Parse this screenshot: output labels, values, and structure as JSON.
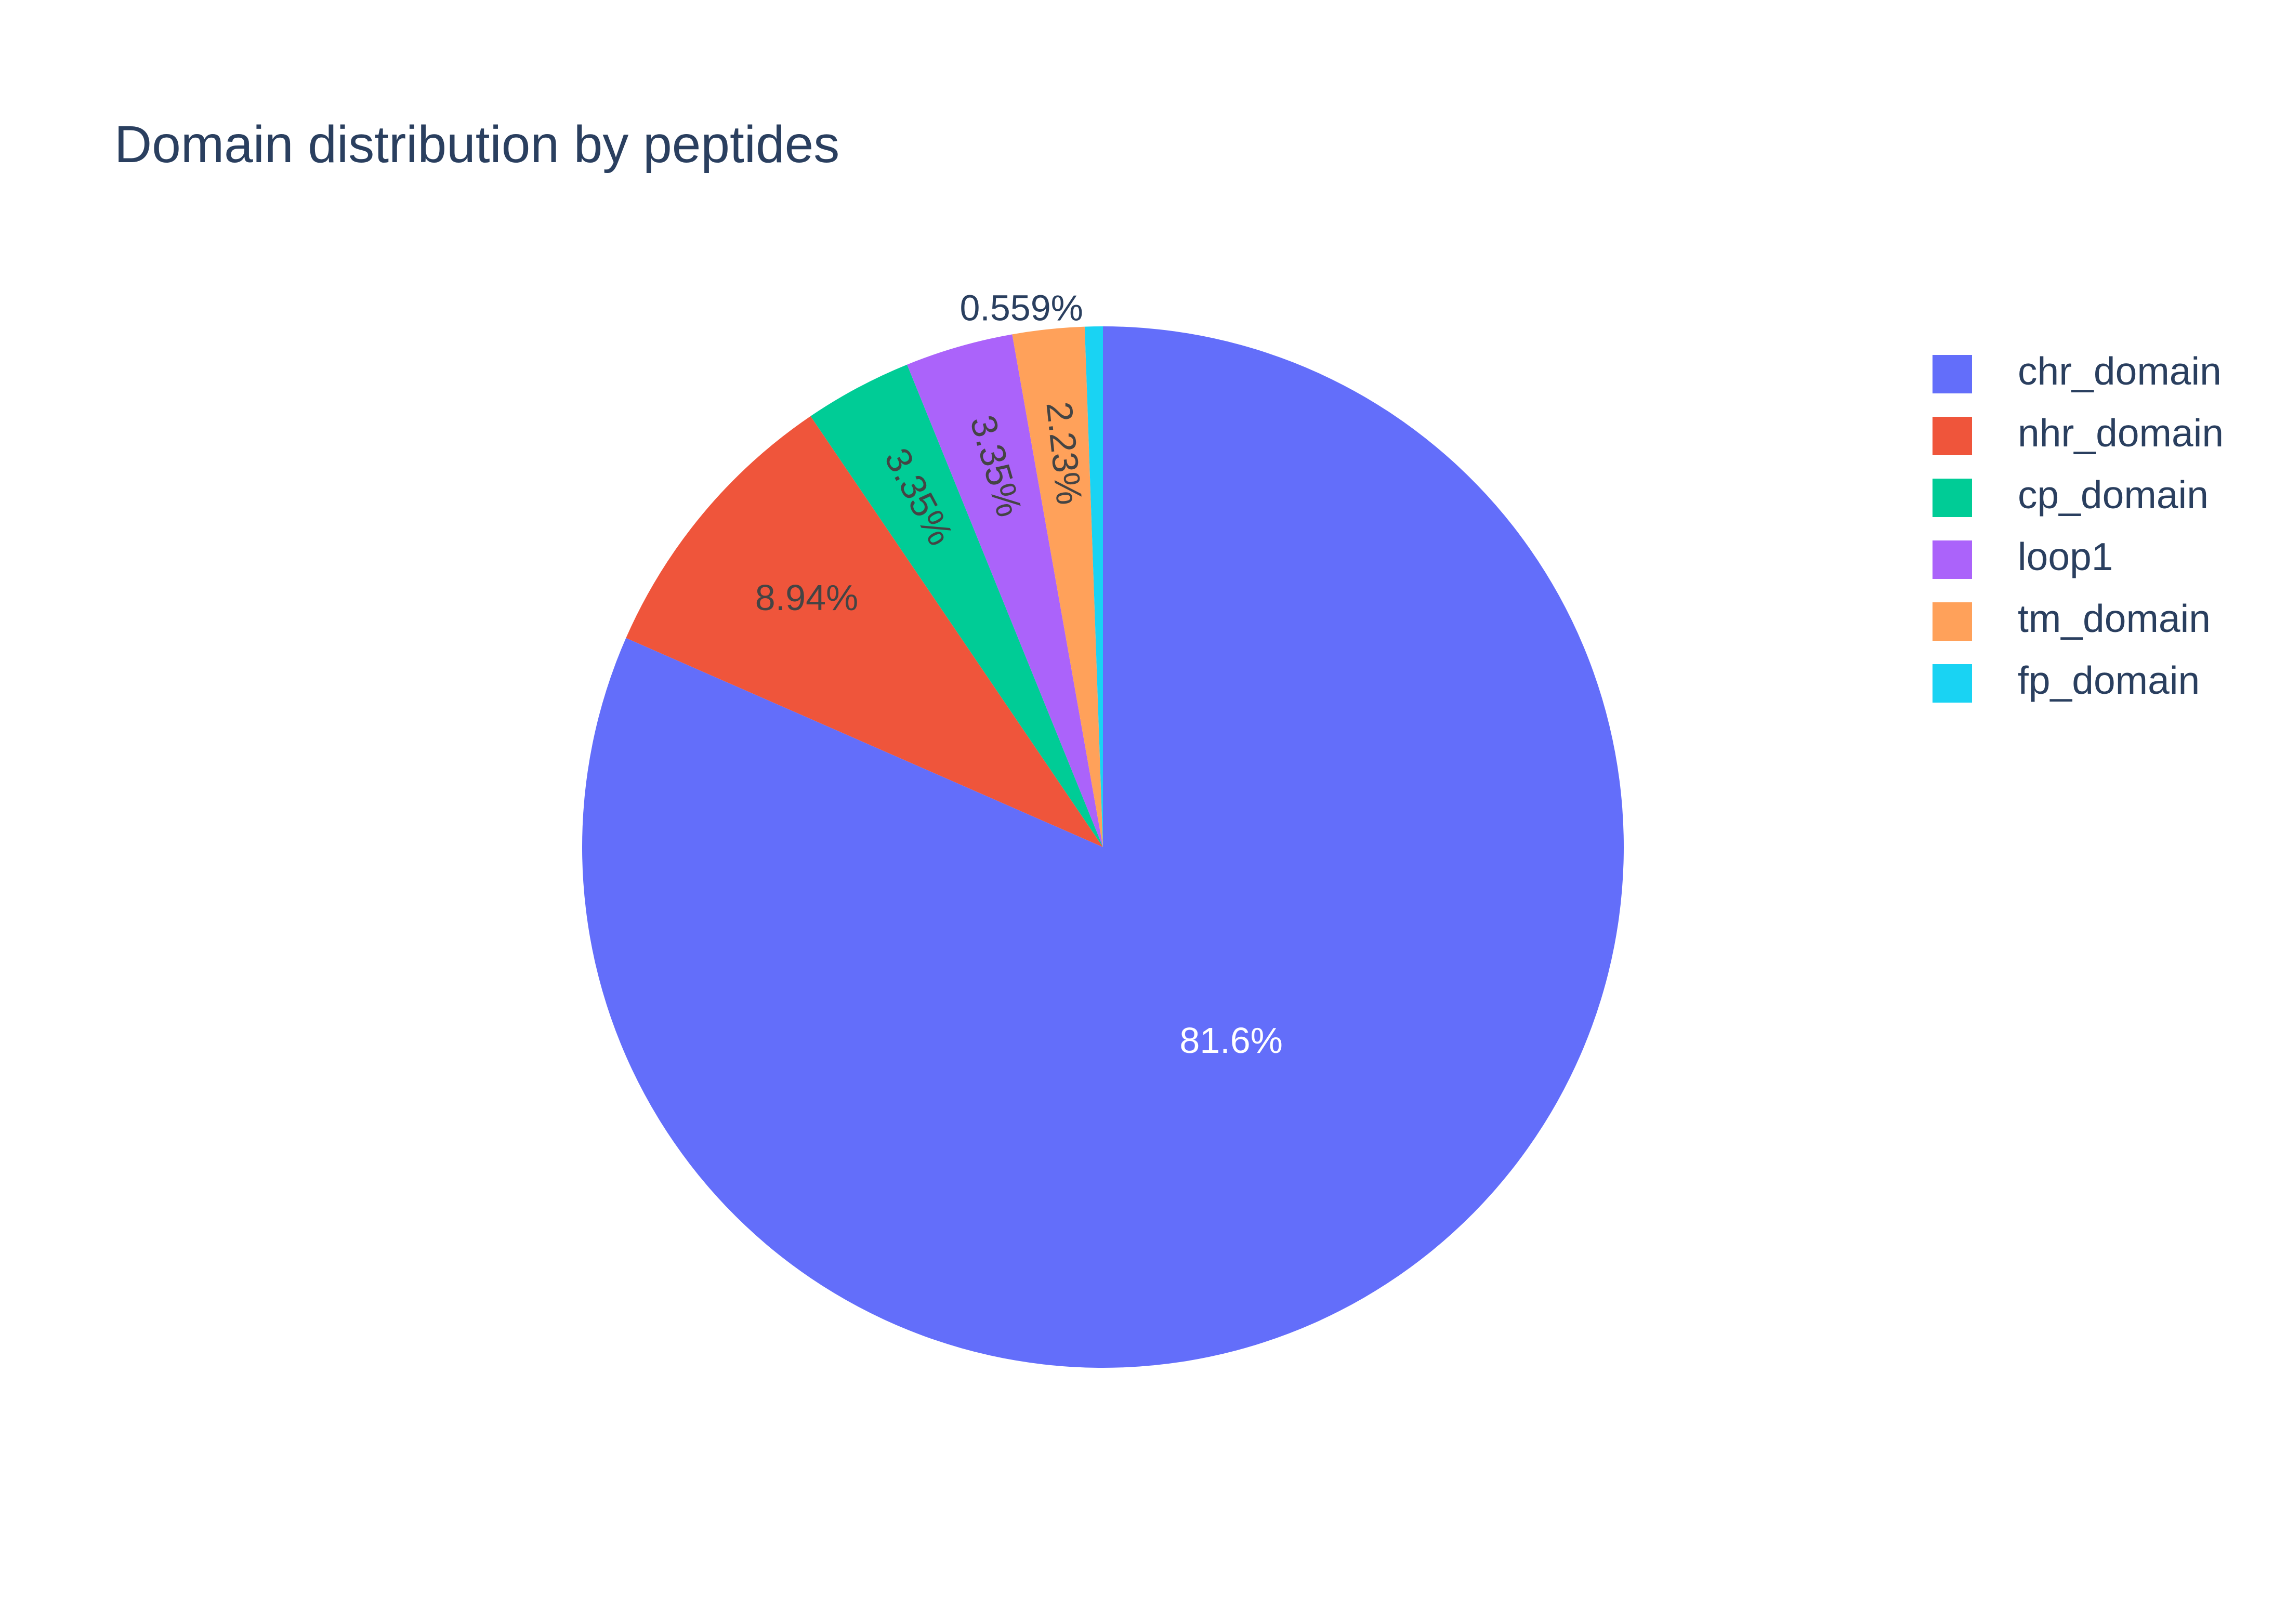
{
  "chart_data": {
    "type": "pie",
    "title": "Domain distribution by peptides",
    "slices": [
      {
        "label": "chr_domain",
        "value": 81.6,
        "text": "81.6%",
        "color": "#636efa",
        "text_color": "#ffffff"
      },
      {
        "label": "nhr_domain",
        "value": 8.94,
        "text": "8.94%",
        "color": "#ef553b",
        "text_color": "#444444"
      },
      {
        "label": "cp_domain",
        "value": 3.35,
        "text": "3.35%",
        "color": "#00cc96",
        "text_color": "#444444"
      },
      {
        "label": "loop1",
        "value": 3.35,
        "text": "3.35%",
        "color": "#ab63fa",
        "text_color": "#444444"
      },
      {
        "label": "tm_domain",
        "value": 2.23,
        "text": "2.23%",
        "color": "#ffa15a",
        "text_color": "#444444"
      },
      {
        "label": "fp_domain",
        "value": 0.559,
        "text": "0.559%",
        "color": "#19d3f3",
        "text_color": "#2a3f5f"
      }
    ],
    "direction": "clockwise",
    "start_angle": "12 o'clock",
    "legend_placement": "right"
  }
}
